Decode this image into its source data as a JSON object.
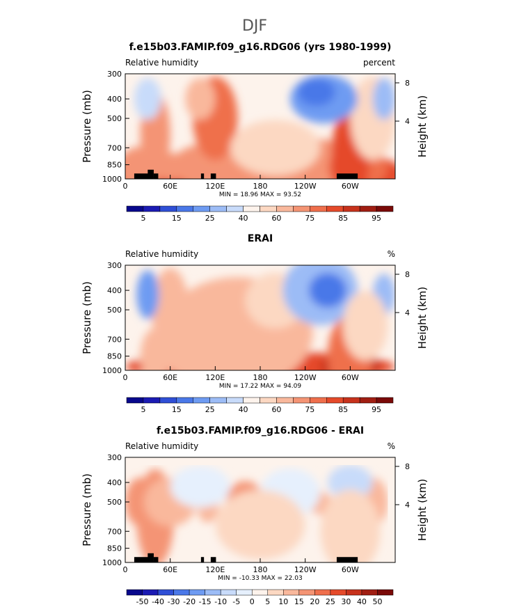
{
  "figure": {
    "title": "DJF"
  },
  "colors": {
    "levels": [
      "#08088c",
      "#1b1bb3",
      "#2f4fd6",
      "#4a78e8",
      "#6e9bf2",
      "#9cbcf6",
      "#c8dbfa",
      "#fdf3ec",
      "#fcd8c2",
      "#f9b89c",
      "#f49474",
      "#ef6f4c",
      "#e54a2a",
      "#c7321c",
      "#a01e12",
      "#7a0a08"
    ],
    "diff_levels": [
      "#08088c",
      "#1b1bb3",
      "#2f4fd6",
      "#4a78e8",
      "#6e9bf2",
      "#9cbcf6",
      "#c8dbfa",
      "#e6f0fd",
      "#fdf3ec",
      "#fcd8c2",
      "#f9b89c",
      "#f49474",
      "#ef6f4c",
      "#e54a2a",
      "#c7321c",
      "#a01e12",
      "#7a0a08"
    ],
    "topography": "#000000"
  },
  "chart_data": [
    {
      "type": "heatmap",
      "title": "f.e15b03.FAMIP.f09_g16.RDG06 (yrs 1980-1999)",
      "left_label": "Relative humidity",
      "right_label": "percent",
      "ylabel": "Pressure (mb)",
      "y2label": "Height (km)",
      "x_ticks": [
        "0",
        "60E",
        "120E",
        "180",
        "120W",
        "60W"
      ],
      "x_tick_values": [
        0,
        60,
        120,
        180,
        240,
        300
      ],
      "xlim": [
        0,
        360
      ],
      "y_ticks": [
        "300",
        "400",
        "500",
        "700",
        "850",
        "1000"
      ],
      "y_tick_values": [
        300,
        400,
        500,
        700,
        850,
        1000
      ],
      "ylim": [
        1000,
        300
      ],
      "y2_ticks": [
        "8",
        "4"
      ],
      "y2_tick_values": [
        8,
        4
      ],
      "stats": "MIN =   18.96   MAX =   93.52",
      "colorbar_labels": [
        "5",
        "15",
        "25",
        "40",
        "60",
        "75",
        "85",
        "95"
      ],
      "topography": [
        [
          12,
          32
        ],
        [
          30,
          38
        ],
        [
          38,
          44
        ],
        [
          101,
          105
        ],
        [
          114,
          121
        ],
        [
          282,
          310
        ]
      ]
    },
    {
      "type": "heatmap",
      "title": "ERAI",
      "left_label": "Relative humidity",
      "right_label": "%",
      "ylabel": "Pressure (mb)",
      "y2label": "Height (km)",
      "x_ticks": [
        "0",
        "60E",
        "120E",
        "180",
        "120W",
        "60W"
      ],
      "x_tick_values": [
        0,
        60,
        120,
        180,
        240,
        300
      ],
      "xlim": [
        0,
        360
      ],
      "y_ticks": [
        "300",
        "400",
        "500",
        "700",
        "850",
        "1000"
      ],
      "y_tick_values": [
        300,
        400,
        500,
        700,
        850,
        1000
      ],
      "ylim": [
        1000,
        300
      ],
      "y2_ticks": [
        "8",
        "4"
      ],
      "y2_tick_values": [
        8,
        4
      ],
      "stats": "MIN =   17.22   MAX =   94.09",
      "colorbar_labels": [
        "5",
        "15",
        "25",
        "40",
        "60",
        "75",
        "85",
        "95"
      ],
      "topography": []
    },
    {
      "type": "heatmap",
      "title": "f.e15b03.FAMIP.f09_g16.RDG06 - ERAI",
      "left_label": "Relative humidity",
      "right_label": "%",
      "ylabel": "Pressure (mb)",
      "y2label": "Height (km)",
      "x_ticks": [
        "0",
        "60E",
        "120E",
        "180",
        "120W",
        "60W"
      ],
      "x_tick_values": [
        0,
        60,
        120,
        180,
        240,
        300
      ],
      "xlim": [
        0,
        360
      ],
      "y_ticks": [
        "300",
        "400",
        "500",
        "700",
        "850",
        "1000"
      ],
      "y_tick_values": [
        300,
        400,
        500,
        700,
        850,
        1000
      ],
      "ylim": [
        1000,
        300
      ],
      "y2_ticks": [
        "8",
        "4"
      ],
      "y2_tick_values": [
        8,
        4
      ],
      "stats": "MIN =  -10.33   MAX =   22.03",
      "colorbar_labels": [
        "-50",
        "-40",
        "-30",
        "-20",
        "-15",
        "-10",
        "-5",
        "0",
        "5",
        "10",
        "15",
        "20",
        "25",
        "30",
        "40",
        "50"
      ],
      "topography": [
        [
          12,
          32
        ],
        [
          30,
          38
        ],
        [
          38,
          44
        ],
        [
          101,
          105
        ],
        [
          114,
          121
        ],
        [
          282,
          310
        ]
      ]
    }
  ]
}
